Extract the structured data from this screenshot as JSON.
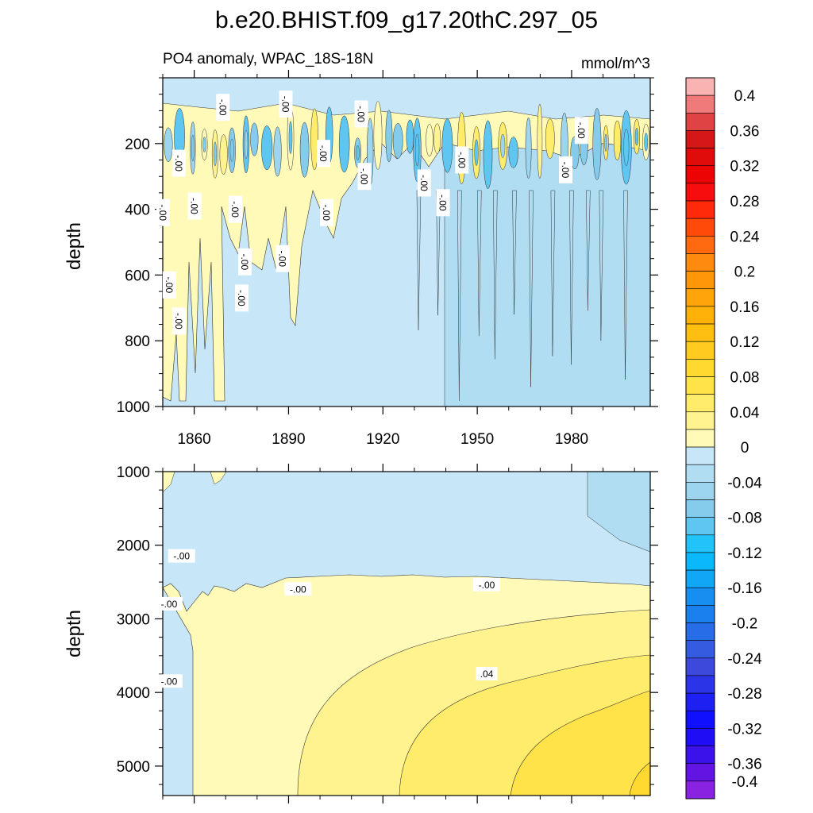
{
  "chart_data": {
    "type": "heatmap",
    "title": "b.e20.BHIST.f09_g17.20thC.297_05",
    "subtitle": "PO4 anomaly, WPAC_18S-18N",
    "units": "mmol/m^3",
    "x": {
      "range": [
        1850,
        2005
      ],
      "ticks": [
        1860,
        1890,
        1920,
        1950,
        1980
      ],
      "tick_labels": [
        "1860",
        "1890",
        "1920",
        "1950",
        "1980"
      ]
    },
    "panels": [
      {
        "name": "upper",
        "ylabel": "depth",
        "ylim": [
          0,
          1000
        ],
        "yticks": [
          200,
          400,
          600,
          800,
          1000
        ],
        "ytick_labels": [
          "200",
          "400",
          "600",
          "800",
          "1000"
        ],
        "contour_labels": [
          {
            "text": "-.00",
            "year": 1869,
            "depth": 90
          },
          {
            "text": "-.00",
            "year": 1889,
            "depth": 80
          },
          {
            "text": "-.00",
            "year": 1913,
            "depth": 110
          },
          {
            "text": "-.00",
            "year": 1901,
            "depth": 230
          },
          {
            "text": "-.00",
            "year": 1914,
            "depth": 300
          },
          {
            "text": "-.00",
            "year": 1933,
            "depth": 320
          },
          {
            "text": "-.00",
            "year": 1945,
            "depth": 250
          },
          {
            "text": "-.00",
            "year": 1939,
            "depth": 380
          },
          {
            "text": "-.00",
            "year": 1983,
            "depth": 160
          },
          {
            "text": "-.00",
            "year": 1978,
            "depth": 280
          },
          {
            "text": "-.00",
            "year": 1855,
            "depth": 260
          },
          {
            "text": "-.00",
            "year": 1850,
            "depth": 410
          },
          {
            "text": "-.00",
            "year": 1860,
            "depth": 390
          },
          {
            "text": "-.00",
            "year": 1873,
            "depth": 400
          },
          {
            "text": "-.00",
            "year": 1902,
            "depth": 410
          },
          {
            "text": "-.00",
            "year": 1876,
            "depth": 560
          },
          {
            "text": "-.00",
            "year": 1888,
            "depth": 550
          },
          {
            "text": "-.00",
            "year": 1852,
            "depth": 630
          },
          {
            "text": "-.00",
            "year": 1855,
            "depth": 740
          },
          {
            "text": "-.00",
            "year": 1875,
            "depth": 670
          }
        ]
      },
      {
        "name": "lower",
        "ylabel": "depth",
        "ylim": [
          1000,
          5400
        ],
        "yticks": [
          1000,
          2000,
          3000,
          4000,
          5000
        ],
        "ytick_labels": [
          "1000",
          "2000",
          "3000",
          "4000",
          "5000"
        ],
        "contour_labels": [
          {
            "text": "-.00",
            "year": 1856,
            "depth": 2150
          },
          {
            "text": "-.00",
            "year": 1852,
            "depth": 2800
          },
          {
            "text": "-.00",
            "year": 1852,
            "depth": 3850
          },
          {
            "text": "-.00",
            "year": 1893,
            "depth": 2600
          },
          {
            "text": "-.00",
            "year": 1953,
            "depth": 2540
          },
          {
            "text": ".04",
            "year": 1953,
            "depth": 3750
          }
        ]
      }
    ],
    "colorbar": {
      "labels": [
        "0.4",
        "0.36",
        "0.32",
        "0.28",
        "0.24",
        "0.2",
        "0.16",
        "0.12",
        "0.08",
        "0.04",
        "0",
        "-0.04",
        "-0.08",
        "-0.12",
        "-0.16",
        "-0.2",
        "-0.24",
        "-0.28",
        "-0.32",
        "-0.36",
        "-0.4"
      ],
      "colors": [
        "#f9b3b3",
        "#f07a7a",
        "#e04343",
        "#d41818",
        "#e00b0b",
        "#ec0303",
        "#f70d0d",
        "#ff2a0a",
        "#ff4a0a",
        "#ff6a10",
        "#ff8a10",
        "#ff960a",
        "#ffa40a",
        "#ffb10a",
        "#ffbe12",
        "#ffcb20",
        "#ffd830",
        "#ffe348",
        "#ffec6b",
        "#fff390",
        "#fffab8",
        "#c7e6f7",
        "#b1ddf3",
        "#9dd5ef",
        "#84cbec",
        "#5ec6f1",
        "#23c2fb",
        "#0bb8fb",
        "#12a6f6",
        "#178ff1",
        "#1a80ee",
        "#276de8",
        "#355be0",
        "#3c49db",
        "#2c34e8",
        "#1e20f2",
        "#1010ff",
        "#1f0ef5",
        "#3c12ea",
        "#6114e2",
        "#8a22e2"
      ]
    }
  }
}
